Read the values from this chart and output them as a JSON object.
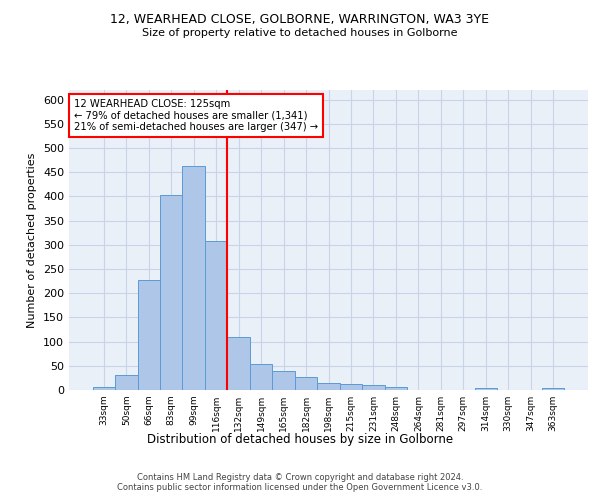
{
  "title": "12, WEARHEAD CLOSE, GOLBORNE, WARRINGTON, WA3 3YE",
  "subtitle": "Size of property relative to detached houses in Golborne",
  "xlabel": "Distribution of detached houses by size in Golborne",
  "ylabel": "Number of detached properties",
  "categories": [
    "33sqm",
    "50sqm",
    "66sqm",
    "83sqm",
    "99sqm",
    "116sqm",
    "132sqm",
    "149sqm",
    "165sqm",
    "182sqm",
    "198sqm",
    "215sqm",
    "231sqm",
    "248sqm",
    "264sqm",
    "281sqm",
    "297sqm",
    "314sqm",
    "330sqm",
    "347sqm",
    "363sqm"
  ],
  "values": [
    7,
    30,
    228,
    402,
    463,
    307,
    110,
    54,
    40,
    27,
    15,
    12,
    10,
    6,
    0,
    0,
    0,
    5,
    0,
    0,
    5
  ],
  "bar_color": "#aec6e8",
  "bar_edgecolor": "#5b9bd5",
  "grid_color": "#c8d4e8",
  "bg_color": "#eaf0f8",
  "vline_x": 5.5,
  "vline_color": "red",
  "annotation_text": "12 WEARHEAD CLOSE: 125sqm\n← 79% of detached houses are smaller (1,341)\n21% of semi-detached houses are larger (347) →",
  "annotation_box_color": "white",
  "annotation_box_edgecolor": "red",
  "ylim": [
    0,
    620
  ],
  "yticks": [
    0,
    50,
    100,
    150,
    200,
    250,
    300,
    350,
    400,
    450,
    500,
    550,
    600
  ],
  "footer1": "Contains HM Land Registry data © Crown copyright and database right 2024.",
  "footer2": "Contains public sector information licensed under the Open Government Licence v3.0."
}
